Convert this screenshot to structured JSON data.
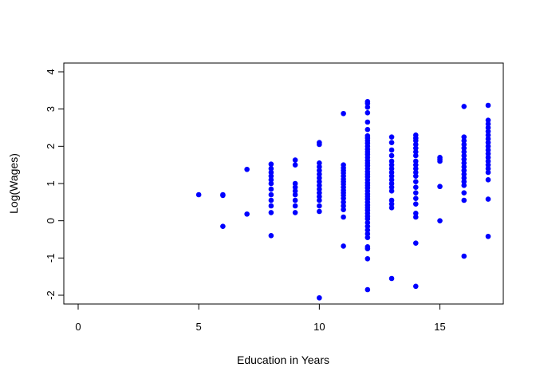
{
  "chart_data": {
    "type": "scatter",
    "title": "",
    "xlabel": "Education in Years",
    "ylabel": "Log(Wages)",
    "xlim": [
      0,
      17
    ],
    "ylim": [
      -2,
      4
    ],
    "xticks": [
      "0",
      "5",
      "10",
      "15"
    ],
    "yticks": [
      "-2",
      "-1",
      "0",
      "1",
      "2",
      "3",
      "4"
    ],
    "grid": false,
    "point_color": "#0000ff",
    "series": [
      {
        "points": [
          [
            5,
            0.7
          ],
          [
            6,
            0.68
          ],
          [
            6,
            0.7
          ],
          [
            6,
            -0.15
          ],
          [
            7,
            1.38
          ],
          [
            7,
            0.18
          ],
          [
            8,
            1.52
          ],
          [
            8,
            1.4
          ],
          [
            8,
            1.3
          ],
          [
            8,
            1.2
          ],
          [
            8,
            1.1
          ],
          [
            8,
            1.0
          ],
          [
            8,
            0.85
          ],
          [
            8,
            0.7
          ],
          [
            8,
            0.55
          ],
          [
            8,
            0.4
          ],
          [
            8,
            0.22
          ],
          [
            8,
            -0.4
          ],
          [
            9,
            1.63
          ],
          [
            9,
            1.5
          ],
          [
            9,
            1.0
          ],
          [
            9,
            0.9
          ],
          [
            9,
            0.8
          ],
          [
            9,
            0.7
          ],
          [
            9,
            0.55
          ],
          [
            9,
            0.4
          ],
          [
            9,
            0.22
          ],
          [
            10,
            2.1
          ],
          [
            10,
            2.05
          ],
          [
            10,
            1.55
          ],
          [
            10,
            1.45
          ],
          [
            10,
            1.35
          ],
          [
            10,
            1.25
          ],
          [
            10,
            1.15
          ],
          [
            10,
            1.05
          ],
          [
            10,
            0.95
          ],
          [
            10,
            0.85
          ],
          [
            10,
            0.75
          ],
          [
            10,
            0.65
          ],
          [
            10,
            0.55
          ],
          [
            10,
            0.4
          ],
          [
            10,
            0.25
          ],
          [
            10,
            -2.07
          ],
          [
            11,
            2.88
          ],
          [
            11,
            1.5
          ],
          [
            11,
            1.42
          ],
          [
            11,
            1.35
          ],
          [
            11,
            1.28
          ],
          [
            11,
            1.2
          ],
          [
            11,
            1.12
          ],
          [
            11,
            1.05
          ],
          [
            11,
            0.98
          ],
          [
            11,
            0.9
          ],
          [
            11,
            0.82
          ],
          [
            11,
            0.75
          ],
          [
            11,
            0.68
          ],
          [
            11,
            0.6
          ],
          [
            11,
            0.5
          ],
          [
            11,
            0.4
          ],
          [
            11,
            0.3
          ],
          [
            11,
            0.1
          ],
          [
            11,
            -0.68
          ],
          [
            12,
            3.2
          ],
          [
            12,
            3.15
          ],
          [
            12,
            3.05
          ],
          [
            12,
            2.9
          ],
          [
            12,
            2.65
          ],
          [
            12,
            2.45
          ],
          [
            12,
            2.28
          ],
          [
            12,
            2.22
          ],
          [
            12,
            2.15
          ],
          [
            12,
            2.08
          ],
          [
            12,
            2.0
          ],
          [
            12,
            1.92
          ],
          [
            12,
            1.85
          ],
          [
            12,
            1.78
          ],
          [
            12,
            1.7
          ],
          [
            12,
            1.62
          ],
          [
            12,
            1.55
          ],
          [
            12,
            1.48
          ],
          [
            12,
            1.4
          ],
          [
            12,
            1.32
          ],
          [
            12,
            1.25
          ],
          [
            12,
            1.18
          ],
          [
            12,
            1.1
          ],
          [
            12,
            1.02
          ],
          [
            12,
            0.95
          ],
          [
            12,
            0.88
          ],
          [
            12,
            0.8
          ],
          [
            12,
            0.72
          ],
          [
            12,
            0.65
          ],
          [
            12,
            0.58
          ],
          [
            12,
            0.5
          ],
          [
            12,
            0.42
          ],
          [
            12,
            0.35
          ],
          [
            12,
            0.28
          ],
          [
            12,
            0.2
          ],
          [
            12,
            0.12
          ],
          [
            12,
            0.05
          ],
          [
            12,
            -0.05
          ],
          [
            12,
            -0.15
          ],
          [
            12,
            -0.25
          ],
          [
            12,
            -0.35
          ],
          [
            12,
            -0.45
          ],
          [
            12,
            -0.7
          ],
          [
            12,
            -0.75
          ],
          [
            12,
            -1.02
          ],
          [
            12,
            -1.85
          ],
          [
            13,
            2.25
          ],
          [
            13,
            2.1
          ],
          [
            13,
            1.9
          ],
          [
            13,
            1.75
          ],
          [
            13,
            1.6
          ],
          [
            13,
            1.5
          ],
          [
            13,
            1.4
          ],
          [
            13,
            1.3
          ],
          [
            13,
            1.2
          ],
          [
            13,
            1.1
          ],
          [
            13,
            1.0
          ],
          [
            13,
            0.9
          ],
          [
            13,
            0.8
          ],
          [
            13,
            0.55
          ],
          [
            13,
            0.45
          ],
          [
            13,
            0.35
          ],
          [
            13,
            -1.55
          ],
          [
            14,
            2.3
          ],
          [
            14,
            2.22
          ],
          [
            14,
            2.15
          ],
          [
            14,
            2.05
          ],
          [
            14,
            1.95
          ],
          [
            14,
            1.85
          ],
          [
            14,
            1.75
          ],
          [
            14,
            1.6
          ],
          [
            14,
            1.5
          ],
          [
            14,
            1.4
          ],
          [
            14,
            1.3
          ],
          [
            14,
            1.2
          ],
          [
            14,
            1.05
          ],
          [
            14,
            0.9
          ],
          [
            14,
            0.75
          ],
          [
            14,
            0.6
          ],
          [
            14,
            0.45
          ],
          [
            14,
            0.2
          ],
          [
            14,
            0.1
          ],
          [
            14,
            -0.6
          ],
          [
            14,
            -1.76
          ],
          [
            15,
            1.7
          ],
          [
            15,
            1.65
          ],
          [
            15,
            1.6
          ],
          [
            15,
            0.92
          ],
          [
            15,
            0.0
          ],
          [
            16,
            3.07
          ],
          [
            16,
            2.25
          ],
          [
            16,
            2.15
          ],
          [
            16,
            2.05
          ],
          [
            16,
            1.95
          ],
          [
            16,
            1.85
          ],
          [
            16,
            1.75
          ],
          [
            16,
            1.65
          ],
          [
            16,
            1.55
          ],
          [
            16,
            1.45
          ],
          [
            16,
            1.35
          ],
          [
            16,
            1.25
          ],
          [
            16,
            1.15
          ],
          [
            16,
            1.05
          ],
          [
            16,
            0.95
          ],
          [
            16,
            0.75
          ],
          [
            16,
            0.55
          ],
          [
            16,
            -0.95
          ],
          [
            17,
            3.1
          ],
          [
            17,
            2.7
          ],
          [
            17,
            2.6
          ],
          [
            17,
            2.5
          ],
          [
            17,
            2.4
          ],
          [
            17,
            2.3
          ],
          [
            17,
            2.2
          ],
          [
            17,
            2.1
          ],
          [
            17,
            2.0
          ],
          [
            17,
            1.9
          ],
          [
            17,
            1.8
          ],
          [
            17,
            1.7
          ],
          [
            17,
            1.6
          ],
          [
            17,
            1.5
          ],
          [
            17,
            1.4
          ],
          [
            17,
            1.3
          ],
          [
            17,
            1.1
          ],
          [
            17,
            0.58
          ],
          [
            17,
            -0.42
          ]
        ]
      }
    ]
  }
}
